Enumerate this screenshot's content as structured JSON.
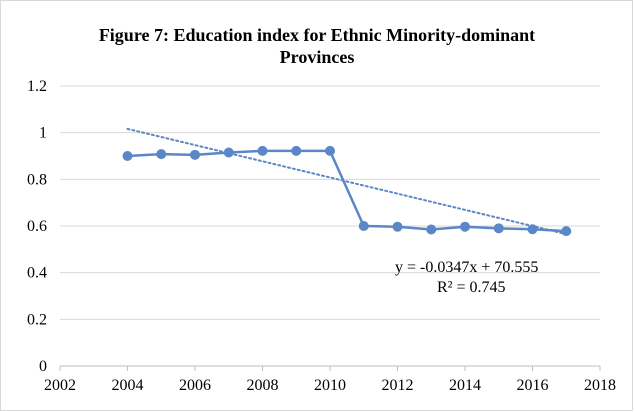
{
  "chart_data": {
    "type": "line",
    "title_line1": "Figure 7: Education index for Ethnic Minority-dominant",
    "title_line2": "Provinces",
    "xlim": [
      2002,
      2018
    ],
    "ylim": [
      0,
      1.2
    ],
    "x_ticks": [
      2002,
      2004,
      2006,
      2008,
      2010,
      2012,
      2014,
      2016,
      2018
    ],
    "y_ticks": [
      0,
      0.2,
      0.4,
      0.6,
      0.8,
      1,
      1.2
    ],
    "grid": "horizontal",
    "series": [
      {
        "x": [
          2004,
          2005,
          2006,
          2007,
          2008,
          2009,
          2010,
          2011,
          2012,
          2013,
          2014,
          2015,
          2016,
          2017
        ],
        "values": [
          0.9,
          0.908,
          0.905,
          0.915,
          0.922,
          0.922,
          0.922,
          0.6,
          0.597,
          0.585,
          0.597,
          0.59,
          0.586,
          0.578
        ],
        "color": "#5b87c7",
        "marker": "circle"
      }
    ],
    "trendline": {
      "type": "linear",
      "slope": -0.0347,
      "intercept": 70.555,
      "x_range": [
        2004,
        2017
      ],
      "style": "dotted",
      "color": "#5b87c7",
      "equation_text": "y = -0.0347x + 70.555",
      "r2_text": "R² = 0.745"
    }
  }
}
